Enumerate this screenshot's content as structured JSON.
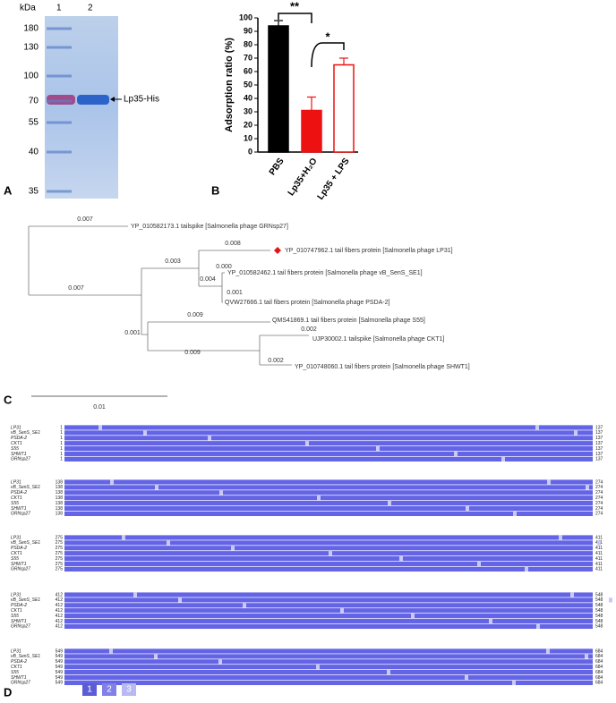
{
  "gel": {
    "unit": "kDa",
    "lanes": [
      "1",
      "2"
    ],
    "markers": [
      "180",
      "130",
      "100",
      "70",
      "55",
      "40",
      "35"
    ],
    "band_label": "Lp35-His",
    "panel": "A"
  },
  "chart_data": {
    "type": "bar",
    "panel": "B",
    "ylabel": "Adsorption ratio (%)",
    "categories": [
      "PBS",
      "Lp35+H₂O",
      "Lp35 + LPS"
    ],
    "values": [
      94,
      31,
      65
    ],
    "errors": [
      4,
      10,
      5
    ],
    "colors": [
      "#000000",
      "#ee1111",
      "#ffffff"
    ],
    "edge_colors": [
      "#000000",
      "#ee1111",
      "#ee1111"
    ],
    "ylim": [
      0,
      100
    ],
    "yticks": [
      0,
      10,
      20,
      30,
      40,
      50,
      60,
      70,
      80,
      90,
      100
    ],
    "significance": [
      "**",
      "*"
    ]
  },
  "tree": {
    "panel": "C",
    "scale": "0.01",
    "leaves": [
      "YP_010582173.1 tailspike [Salmonella phage GRNsp27]",
      "YP_010747962.1 tail fibers protein [Salmonella phage LP31]",
      "YP_010582462.1 tail fibers protein [Salmonella phage vB_SenS_SE1]",
      "QVW27666.1 tail fibers protein [Salmonella phage PSDA-2]",
      "QMS41869.1 tail fibers protein [Salmonella phage S55]",
      "UJP30002.1 tailspike [Salmonella phage CKT1]",
      "YP_010748060.1 tail fibers protein [Salmonella phage SHWT1]"
    ],
    "branch_labels": [
      "0.007",
      "0.008",
      "0.003",
      "0.000",
      "0.004",
      "0.001",
      "0.007",
      "0.009",
      "0.001",
      "0.002",
      "0.009",
      "0.002"
    ]
  },
  "alignment": {
    "panel": "D",
    "names": [
      "LP31",
      "vB_SenS_SE1",
      "PSDA-2",
      "CKT1",
      "S55",
      "SHWT1",
      "GRNsp27"
    ],
    "starts": [
      "1",
      "138",
      "275",
      "412",
      "549"
    ],
    "ends": [
      "137",
      "274",
      "411",
      "548",
      "684"
    ],
    "legend": [
      "1",
      "2",
      "3"
    ]
  }
}
